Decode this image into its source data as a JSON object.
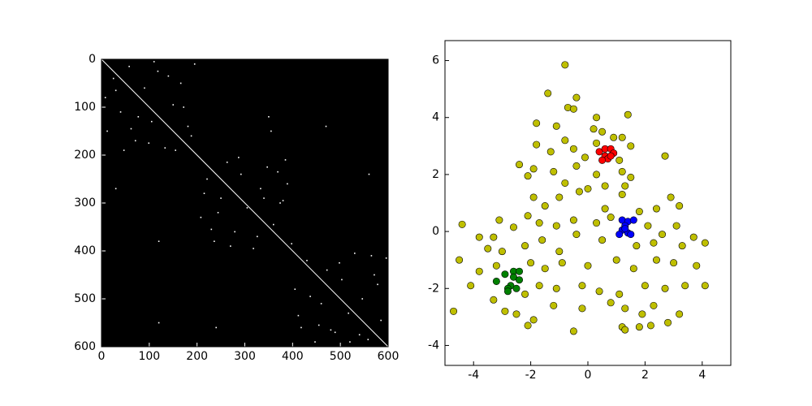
{
  "chart_data": [
    {
      "type": "image",
      "xlim": [
        0,
        600
      ],
      "ylim": [
        600,
        0
      ],
      "xticks": [
        0,
        100,
        200,
        300,
        400,
        500,
        600
      ],
      "yticks": [
        0,
        100,
        200,
        300,
        400,
        500,
        600
      ],
      "background": "#000000",
      "color": "#ffffff",
      "diagonal": true,
      "x": [
        12,
        25,
        40,
        58,
        71,
        90,
        105,
        118,
        133,
        150,
        166,
        181,
        195,
        8,
        47,
        77,
        99,
        140,
        172,
        188,
        30,
        62,
        110,
        155,
        208,
        221,
        236,
        250,
        263,
        279,
        292,
        305,
        318,
        333,
        347,
        360,
        374,
        389,
        398,
        215,
        244,
        287,
        326,
        369,
        230,
        270,
        340,
        385,
        405,
        418,
        430,
        447,
        460,
        472,
        489,
        503,
        517,
        530,
        546,
        558,
        571,
        585,
        596,
        412,
        455,
        498,
        540,
        578,
        437,
        520,
        565,
        480,
        350,
        355,
        470,
        120,
        30,
        560,
        240,
        120,
        380
      ],
      "y": [
        150,
        40,
        110,
        15,
        170,
        60,
        130,
        25,
        185,
        95,
        50,
        140,
        10,
        80,
        190,
        120,
        175,
        35,
        100,
        160,
        65,
        145,
        5,
        190,
        330,
        250,
        380,
        290,
        215,
        360,
        240,
        310,
        395,
        270,
        225,
        345,
        300,
        260,
        385,
        280,
        320,
        205,
        370,
        235,
        355,
        390,
        290,
        210,
        480,
        560,
        420,
        590,
        510,
        440,
        570,
        460,
        530,
        405,
        500,
        585,
        450,
        545,
        415,
        535,
        555,
        425,
        575,
        470,
        495,
        590,
        410,
        565,
        120,
        150,
        140,
        380,
        270,
        240,
        560,
        550,
        295
      ]
    },
    {
      "type": "scatter",
      "xlim": [
        -5,
        5
      ],
      "ylim": [
        -4.7,
        6.7
      ],
      "xticks": [
        -4,
        -2,
        0,
        2,
        4
      ],
      "yticks": [
        -4,
        -2,
        0,
        2,
        4,
        6
      ],
      "series": [
        {
          "color": "#bfbf00",
          "x": [
            -0.8,
            -1.4,
            -0.4,
            -0.7,
            -0.5,
            0.3,
            1.4,
            -1.8,
            -1.1,
            -0.8,
            0.2,
            0.5,
            0.9,
            1.2,
            1.5,
            -1.8,
            -1.3,
            -0.5,
            -0.1,
            0.3,
            1.1,
            2.7,
            -2.4,
            -1.9,
            -1.2,
            -0.4,
            0.3,
            1.2,
            1.5,
            -2.1,
            -0.8,
            0,
            0.6,
            1.3,
            -1.9,
            -1,
            -0.3,
            1.2,
            2.9,
            3.2,
            -1.5,
            0.6,
            1.8,
            2.4,
            -4.4,
            -3.8,
            -3.3,
            -3.1,
            -2.6,
            -2.1,
            -1.7,
            -1.1,
            -0.5,
            0.3,
            0.8,
            2.1,
            2.6,
            3.1,
            3.7,
            4.1,
            -4.5,
            -3.5,
            -3,
            -2.2,
            -1.6,
            -1,
            -0.4,
            0.5,
            1.7,
            2.3,
            3.3,
            -3.8,
            -3.2,
            -2,
            -1.5,
            -0.9,
            0,
            1,
            1.6,
            2.4,
            3,
            3.8,
            -4.1,
            -3.3,
            -2.2,
            -1.7,
            -1.1,
            -0.2,
            0.4,
            1.1,
            2,
            2.7,
            3.4,
            4.1,
            -4.7,
            -2.9,
            -2.5,
            -1.9,
            -1.2,
            -0.2,
            0.8,
            1.3,
            1.9,
            2.3,
            3.2,
            -2.1,
            1.2,
            1.3,
            1.8,
            2.2,
            2.8,
            -0.5
          ],
          "y": [
            5.85,
            4.85,
            4.7,
            4.35,
            4.3,
            4,
            4.1,
            3.8,
            3.7,
            3.2,
            3.6,
            3.5,
            3.3,
            3.3,
            3,
            3.05,
            2.8,
            2.9,
            2.6,
            3.1,
            2.5,
            2.65,
            2.35,
            2.2,
            2.1,
            2.3,
            2,
            2.1,
            1.9,
            1.95,
            1.7,
            1.5,
            1.6,
            1.6,
            1.2,
            1.2,
            1.4,
            1.3,
            1.2,
            0.9,
            0.9,
            0.8,
            0.7,
            0.8,
            0.25,
            -0.2,
            -0.2,
            0.4,
            0.15,
            0.55,
            0.3,
            0.2,
            0.4,
            0.3,
            0.5,
            0.2,
            -0.1,
            0.2,
            -0.2,
            -0.4,
            -1,
            -0.6,
            -0.7,
            -0.5,
            -0.3,
            -0.7,
            -0.1,
            -0.3,
            -0.5,
            -0.4,
            -0.5,
            -1.4,
            -1.2,
            -1.1,
            -1.3,
            -1.1,
            -1.2,
            -1,
            -1.3,
            -1,
            -1.1,
            -1.2,
            -1.9,
            -2.4,
            -2.2,
            -1.9,
            -2,
            -1.9,
            -2.1,
            -2.2,
            -1.9,
            -2,
            -1.9,
            -1.9,
            -2.8,
            -2.8,
            -2.9,
            -3.1,
            -2.6,
            -2.7,
            -2.5,
            -2.7,
            -2.9,
            -2.6,
            -2.9,
            -3.3,
            -3.35,
            -3.45,
            -3.35,
            -3.3,
            -3.2,
            -3.5
          ]
        },
        {
          "color": "#ff0000",
          "x": [
            0.4,
            0.6,
            0.8,
            0.9,
            0.6,
            0.7,
            0.5,
            0.8
          ],
          "y": [
            2.8,
            2.9,
            2.9,
            2.75,
            2.65,
            2.55,
            2.5,
            2.65
          ]
        },
        {
          "color": "#0000ff",
          "x": [
            1.2,
            1.4,
            1.6,
            1.3,
            1.2,
            1.4,
            1.1,
            1.5,
            1.3
          ],
          "y": [
            0.4,
            0.35,
            0.4,
            0.2,
            0.05,
            -0.05,
            -0.1,
            -0.1,
            0.1
          ]
        },
        {
          "color": "#008000",
          "x": [
            -2.6,
            -2.4,
            -2.9,
            -2.6,
            -2.4,
            -3.2,
            -2.7,
            -2.8,
            -2.5,
            -2.8
          ],
          "y": [
            -1.4,
            -1.4,
            -1.5,
            -1.6,
            -1.7,
            -1.75,
            -1.9,
            -2,
            -2,
            -2.1
          ]
        }
      ]
    }
  ]
}
